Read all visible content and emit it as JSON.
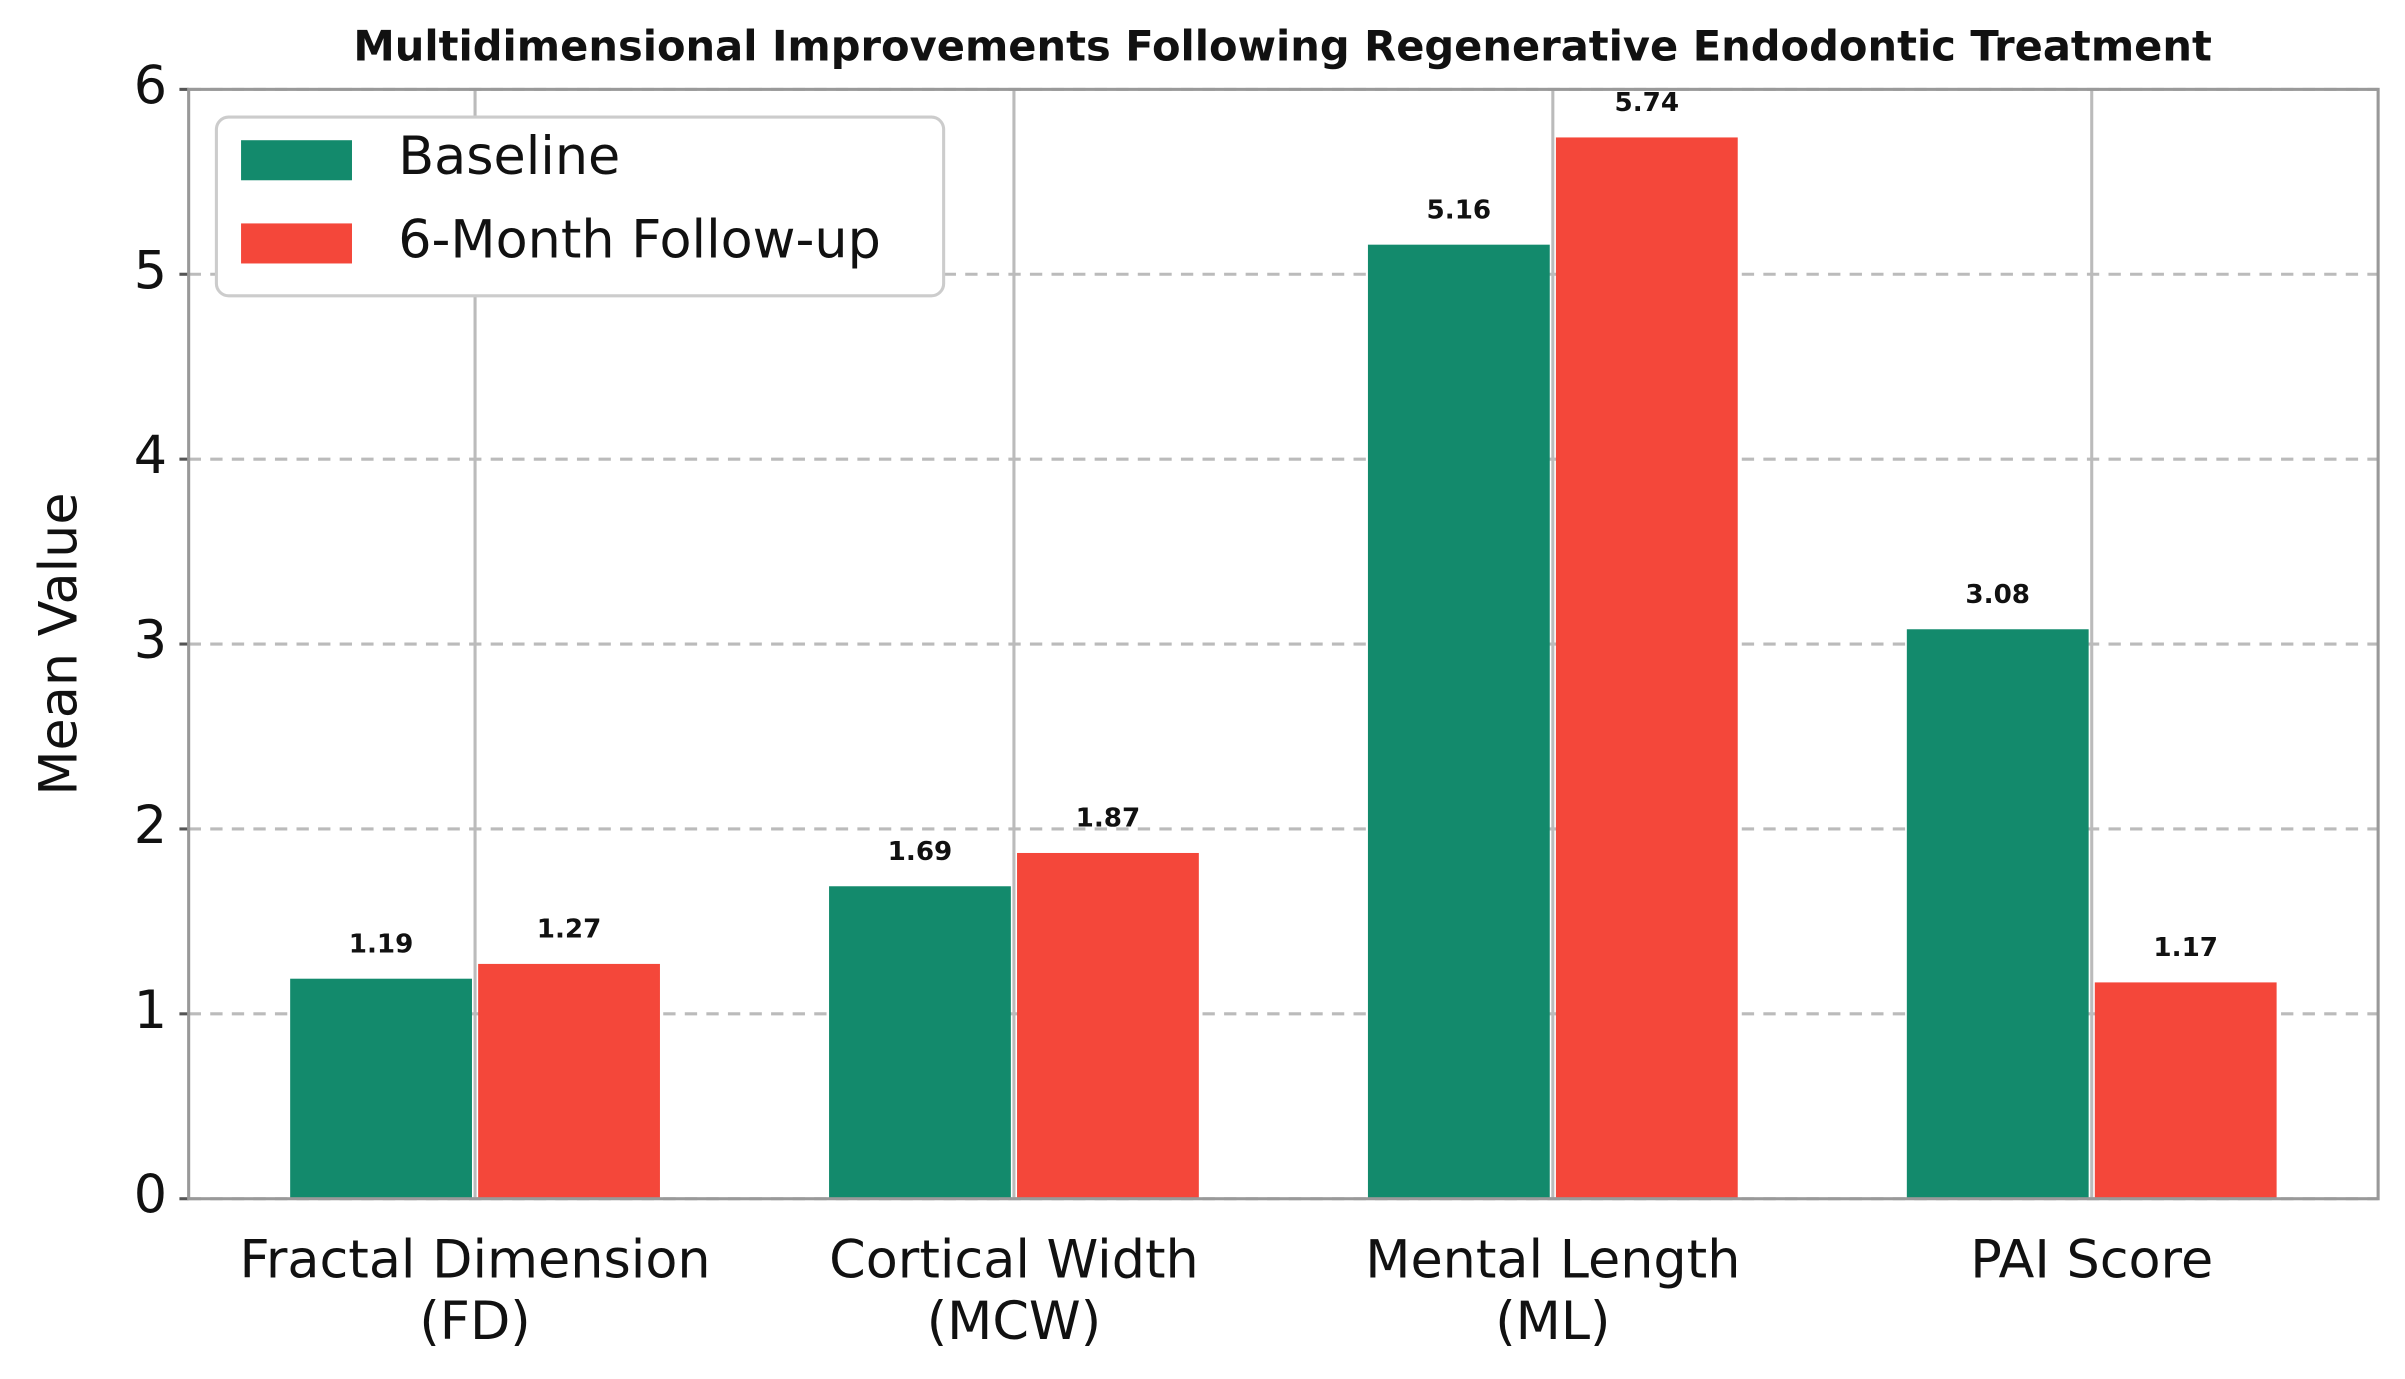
{
  "chart_data": {
    "type": "bar",
    "title": "Multidimensional Improvements Following Regenerative Endodontic Treatment",
    "y_label": "Mean Value",
    "categories": [
      "Fractal Dimension\n(FD)",
      "Cortical Width\n(MCW)",
      "Mental Length\n(ML)",
      "PAI Score"
    ],
    "series": [
      {
        "name": "Baseline",
        "color": "#138a6c",
        "values": [
          1.19,
          1.69,
          5.16,
          3.08
        ]
      },
      {
        "name": "6-Month Follow-up",
        "color": "#f4473a",
        "values": [
          1.27,
          1.87,
          5.74,
          1.17
        ]
      }
    ],
    "ylim": [
      0,
      6
    ],
    "yticks": [
      0,
      1,
      2,
      3,
      4,
      5,
      6
    ],
    "grid": true,
    "legend": "upper left"
  }
}
